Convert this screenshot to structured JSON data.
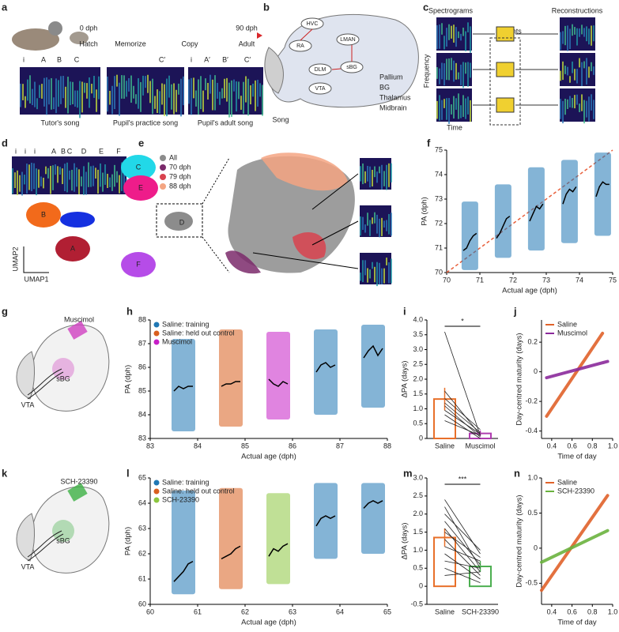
{
  "panel_labels": [
    "a",
    "b",
    "c",
    "d",
    "e",
    "f",
    "g",
    "h",
    "i",
    "j",
    "k",
    "l",
    "m",
    "n"
  ],
  "panels": {
    "a": {
      "timeline": [
        "0 dph",
        "Hatch",
        "Memorize",
        "Copy",
        "90 dph",
        "Adult"
      ],
      "syllables": [
        "i",
        "A",
        "B",
        "C",
        "C′",
        "i",
        "A′",
        "B′",
        "C′"
      ],
      "songs": [
        "Tutor's song",
        "Pupil's practice song",
        "Pupil's adult song"
      ]
    },
    "b": {
      "nuclei": [
        "HVC",
        "RA",
        "LMAN",
        "DLM",
        "sBG",
        "VTA"
      ],
      "output": "Song",
      "regions": [
        {
          "name": "Pallium",
          "color": "#9db0d6"
        },
        {
          "name": "BG",
          "color": "#5b7fd3"
        },
        {
          "name": "Thalamus",
          "color": "#2fa36b"
        },
        {
          "name": "Midbrain",
          "color": "#e020c8"
        }
      ]
    },
    "c": {
      "columns": [
        "Spectrograms",
        "Reconstructions"
      ],
      "latents": "Latents",
      "ylabel": "Frequency",
      "xlabel": "Time"
    },
    "d": {
      "syllables": [
        "i",
        "i",
        "i",
        "A",
        "B",
        "C",
        "D",
        "E",
        "F"
      ],
      "clusters": [
        "C",
        "E",
        "B",
        "A",
        "F"
      ],
      "xlabel": "UMAP1",
      "ylabel": "UMAP2"
    },
    "e": {
      "legend": [
        {
          "name": "All",
          "color": "#8c8c8c"
        },
        {
          "name": "70 dph",
          "color": "#7b2a6b"
        },
        {
          "name": "79 dph",
          "color": "#d9434f"
        },
        {
          "name": "88 dph",
          "color": "#f4a582"
        }
      ],
      "cluster": "D"
    },
    "g": {
      "drug": "Muscimol",
      "target": "sBG",
      "source": "VTA"
    },
    "k": {
      "drug": "SCH-23390",
      "target": "sBG",
      "source": "VTA"
    }
  },
  "chart_data": [
    {
      "type": "scatter",
      "xlabel": "Actual age (dph)",
      "ylabel": "PA (dph)",
      "xlim": [
        70,
        75
      ],
      "ylim": [
        70,
        75
      ],
      "xticks": [
        70,
        71,
        72,
        73,
        74,
        75
      ],
      "yticks": [
        70,
        71,
        72,
        73,
        74,
        75
      ],
      "color": "#1f77b4",
      "line_color": "#000000",
      "diagonal": true,
      "diagonal_color": "#e8603c",
      "days": [
        {
          "x": [
            70.45,
            70.95
          ],
          "y": [
            70.1,
            72.9
          ],
          "mean_x": [
            70.5,
            70.6,
            70.7,
            70.8,
            70.9
          ],
          "mean_y": [
            70.9,
            71.0,
            71.3,
            71.5,
            71.6
          ]
        },
        {
          "x": [
            71.45,
            71.95
          ],
          "y": [
            70.6,
            73.6
          ],
          "mean_x": [
            71.5,
            71.6,
            71.7,
            71.8,
            71.9
          ],
          "mean_y": [
            71.4,
            71.6,
            71.9,
            72.2,
            72.3
          ]
        },
        {
          "x": [
            72.45,
            72.95
          ],
          "y": [
            70.9,
            74.3
          ],
          "mean_x": [
            72.5,
            72.6,
            72.7,
            72.8,
            72.9
          ],
          "mean_y": [
            72.1,
            72.4,
            72.7,
            72.6,
            72.8
          ]
        },
        {
          "x": [
            73.45,
            73.95
          ],
          "y": [
            71.2,
            74.6
          ],
          "mean_x": [
            73.5,
            73.6,
            73.7,
            73.8,
            73.9
          ],
          "mean_y": [
            72.8,
            73.2,
            73.4,
            73.3,
            73.5
          ]
        },
        {
          "x": [
            74.45,
            74.95
          ],
          "y": [
            71.5,
            74.9
          ],
          "mean_x": [
            74.5,
            74.6,
            74.7,
            74.8,
            74.9
          ],
          "mean_y": [
            73.1,
            73.5,
            73.7,
            73.6,
            73.6
          ]
        }
      ]
    },
    {
      "type": "scatter",
      "xlabel": "Actual age (dph)",
      "ylabel": "PA (dph)",
      "xlim": [
        83,
        88
      ],
      "ylim": [
        83,
        88
      ],
      "xticks": [
        83,
        84,
        85,
        86,
        87,
        88
      ],
      "yticks": [
        83,
        84,
        85,
        86,
        87,
        88
      ],
      "line_color": "#000000",
      "series": [
        {
          "name": "Saline: training",
          "color": "#1f77b4"
        },
        {
          "name": "Saline: held out control",
          "color": "#d95f1e"
        },
        {
          "name": "Muscimol",
          "color": "#c71fc7"
        }
      ],
      "days": [
        {
          "series": 0,
          "x": [
            83.45,
            83.95
          ],
          "y": [
            83.3,
            87.2
          ],
          "mean_x": [
            83.5,
            83.6,
            83.7,
            83.8,
            83.9
          ],
          "mean_y": [
            85.0,
            85.2,
            85.1,
            85.2,
            85.2
          ]
        },
        {
          "series": 1,
          "x": [
            84.45,
            84.95
          ],
          "y": [
            83.5,
            87.6
          ],
          "mean_x": [
            84.5,
            84.6,
            84.7,
            84.8,
            84.9
          ],
          "mean_y": [
            85.2,
            85.3,
            85.3,
            85.4,
            85.4
          ]
        },
        {
          "series": 2,
          "x": [
            85.45,
            85.95
          ],
          "y": [
            83.8,
            87.5
          ],
          "mean_x": [
            85.5,
            85.6,
            85.7,
            85.8,
            85.9
          ],
          "mean_y": [
            85.5,
            85.3,
            85.2,
            85.4,
            85.3
          ]
        },
        {
          "series": 0,
          "x": [
            86.45,
            86.95
          ],
          "y": [
            84.0,
            87.6
          ],
          "mean_x": [
            86.5,
            86.6,
            86.7,
            86.8,
            86.9
          ],
          "mean_y": [
            85.8,
            86.1,
            86.2,
            86.0,
            86.1
          ]
        },
        {
          "series": 0,
          "x": [
            87.45,
            87.95
          ],
          "y": [
            84.3,
            87.8
          ],
          "mean_x": [
            87.5,
            87.6,
            87.7,
            87.8,
            87.9
          ],
          "mean_y": [
            86.4,
            86.7,
            86.9,
            86.5,
            86.8
          ]
        }
      ]
    },
    {
      "type": "bar",
      "ylabel": "ΔPA (days)",
      "categories": [
        "Saline",
        "Muscimol"
      ],
      "values": [
        1.33,
        0.17
      ],
      "errors": [
        0.38,
        0.1
      ],
      "colors": [
        "#e8702a",
        "#b03cb0"
      ],
      "ylim": [
        0,
        4
      ],
      "yticks": [
        0,
        0.5,
        {
          "value": 1,
          "label": "1.0"
        },
        1.5,
        {
          "value": 2,
          "label": "2.0"
        },
        2.5,
        {
          "value": 3,
          "label": "3.0"
        },
        3.5,
        {
          "value": 4,
          "label": "4.0"
        }
      ],
      "pairs": [
        [
          3.6,
          0.1
        ],
        [
          1.6,
          0.12
        ],
        [
          1.35,
          0.3
        ],
        [
          1.2,
          0.2
        ],
        [
          1.1,
          0.05
        ],
        [
          0.95,
          0.15
        ],
        [
          0.8,
          0.0
        ],
        [
          0.6,
          0.1
        ]
      ],
      "significance": "*"
    },
    {
      "type": "line",
      "xlabel": "Time of day",
      "ylabel": "Day-centred maturity (days)",
      "xlim": [
        0.3,
        1.0
      ],
      "xticks": [
        0.4,
        0.6,
        0.8,
        {
          "value": 1,
          "label": "1.0"
        }
      ],
      "ylim": [
        -0.45,
        0.35
      ],
      "yticks": [
        -0.4,
        -0.2,
        0,
        0.2
      ],
      "series": [
        {
          "name": "Saline",
          "color": "#e0622a",
          "x": [
            0.35,
            0.9
          ],
          "values": [
            -0.3,
            0.26
          ]
        },
        {
          "name": "Muscimol",
          "color": "#8b2a9b",
          "x": [
            0.35,
            0.95
          ],
          "values": [
            -0.04,
            0.07
          ]
        }
      ]
    },
    {
      "type": "scatter",
      "xlabel": "Actual age (dph)",
      "ylabel": "PA (dph)",
      "xlim": [
        60,
        65
      ],
      "ylim": [
        60,
        65
      ],
      "xticks": [
        60,
        61,
        62,
        63,
        64,
        65
      ],
      "yticks": [
        60,
        61,
        62,
        63,
        64,
        65
      ],
      "line_color": "#000000",
      "series": [
        {
          "name": "Saline: training",
          "color": "#1f77b4"
        },
        {
          "name": "Saline: held out control",
          "color": "#d95f1e"
        },
        {
          "name": "SCH-23390",
          "color": "#8cc63f"
        }
      ],
      "days": [
        {
          "series": 0,
          "x": [
            60.45,
            60.95
          ],
          "y": [
            60.4,
            64.5
          ],
          "mean_x": [
            60.5,
            60.6,
            60.7,
            60.8,
            60.9
          ],
          "mean_y": [
            60.9,
            61.1,
            61.3,
            61.6,
            61.7
          ]
        },
        {
          "series": 1,
          "x": [
            61.45,
            61.95
          ],
          "y": [
            60.6,
            64.6
          ],
          "mean_x": [
            61.5,
            61.6,
            61.7,
            61.8,
            61.9
          ],
          "mean_y": [
            61.8,
            61.9,
            62.0,
            62.2,
            62.3
          ]
        },
        {
          "series": 2,
          "x": [
            62.45,
            62.95
          ],
          "y": [
            60.8,
            64.4
          ],
          "mean_x": [
            62.5,
            62.6,
            62.7,
            62.8,
            62.9
          ],
          "mean_y": [
            61.9,
            62.2,
            62.1,
            62.3,
            62.4
          ]
        },
        {
          "series": 0,
          "x": [
            63.45,
            63.95
          ],
          "y": [
            61.8,
            64.8
          ],
          "mean_x": [
            63.5,
            63.6,
            63.7,
            63.8,
            63.9
          ],
          "mean_y": [
            63.1,
            63.4,
            63.5,
            63.4,
            63.5
          ]
        },
        {
          "series": 0,
          "x": [
            64.45,
            64.95
          ],
          "y": [
            62.0,
            64.8
          ],
          "mean_x": [
            64.5,
            64.6,
            64.7,
            64.8,
            64.9
          ],
          "mean_y": [
            63.8,
            64.0,
            64.1,
            64.0,
            64.1
          ]
        }
      ]
    },
    {
      "type": "bar",
      "ylabel": "ΔPA (days)",
      "categories": [
        "Saline",
        "SCH-23390"
      ],
      "values": [
        1.35,
        0.55
      ],
      "errors": [
        0.25,
        0.15
      ],
      "colors": [
        "#e8702a",
        "#4caf50"
      ],
      "ylim": [
        -0.5,
        3
      ],
      "yticks": [
        -0.5,
        0,
        0.5,
        {
          "value": 1,
          "label": "1.0"
        },
        1.5,
        {
          "value": 2,
          "label": "2.0"
        },
        2.5,
        {
          "value": 3,
          "label": "3.0"
        }
      ],
      "pairs": [
        [
          2.4,
          0.9
        ],
        [
          2.2,
          0.5
        ],
        [
          2.0,
          1.0
        ],
        [
          1.8,
          0.6
        ],
        [
          1.6,
          0.4
        ],
        [
          1.5,
          0.8
        ],
        [
          1.3,
          0.3
        ],
        [
          1.1,
          0.7
        ],
        [
          0.9,
          0.2
        ],
        [
          0.7,
          0.5
        ],
        [
          0.5,
          0.1
        ],
        [
          0.3,
          0.4
        ]
      ],
      "significance": "***"
    },
    {
      "type": "line",
      "xlabel": "Time of day",
      "ylabel": "Day-centred maturity (days)",
      "xlim": [
        0.3,
        1.0
      ],
      "xticks": [
        0.4,
        0.6,
        0.8,
        {
          "value": 1,
          "label": "1.0"
        }
      ],
      "ylim": [
        -0.8,
        1.0
      ],
      "yticks": [
        -0.5,
        0,
        0.5,
        {
          "value": 1,
          "label": "1.0"
        }
      ],
      "series": [
        {
          "name": "Saline",
          "color": "#e0622a",
          "x": [
            0.3,
            0.95
          ],
          "values": [
            -0.6,
            0.75
          ]
        },
        {
          "name": "SCH-23390",
          "color": "#6ab23e",
          "x": [
            0.3,
            0.95
          ],
          "values": [
            -0.2,
            0.25
          ]
        }
      ]
    }
  ]
}
